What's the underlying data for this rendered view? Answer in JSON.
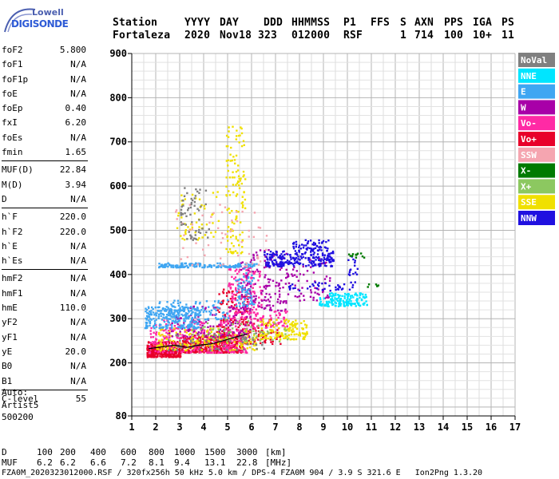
{
  "logo": {
    "line1": "Lowell",
    "line2": "DIGISONDE"
  },
  "header": {
    "labels": [
      "Station",
      "YYYY",
      "DAY",
      "DDD",
      "HHMMSS",
      "P1",
      "FFS",
      "S",
      "AXN",
      "PPS",
      "IGA",
      "PS"
    ],
    "values": [
      "Fortaleza",
      "2020",
      "Nov18",
      "323",
      "012000",
      "RSF",
      "1",
      "714",
      "100",
      "10+",
      "11"
    ]
  },
  "params": [
    {
      "group": [
        {
          "name": "foF2",
          "value": "5.800"
        },
        {
          "name": "foF1",
          "value": "N/A"
        },
        {
          "name": "foF1p",
          "value": "N/A"
        },
        {
          "name": "foE",
          "value": "N/A"
        },
        {
          "name": "foEp",
          "value": "0.40"
        },
        {
          "name": "fxI",
          "value": "6.20"
        },
        {
          "name": "foEs",
          "value": "N/A"
        },
        {
          "name": "fmin",
          "value": "1.65"
        }
      ]
    },
    {
      "group": [
        {
          "name": "MUF(D)",
          "value": "22.84"
        },
        {
          "name": "M(D)",
          "value": "3.94"
        },
        {
          "name": "D",
          "value": "N/A"
        }
      ]
    },
    {
      "group": [
        {
          "name": "h`F",
          "value": "220.0"
        },
        {
          "name": "h`F2",
          "value": "220.0"
        },
        {
          "name": "h`E",
          "value": "N/A"
        },
        {
          "name": "h`Es",
          "value": "N/A"
        }
      ]
    },
    {
      "group": [
        {
          "name": "hmF2",
          "value": "N/A"
        },
        {
          "name": "hmF1",
          "value": "N/A"
        },
        {
          "name": "hmE",
          "value": "110.0"
        },
        {
          "name": "yF2",
          "value": "N/A"
        },
        {
          "name": "yF1",
          "value": "N/A"
        },
        {
          "name": "yE",
          "value": "20.0"
        },
        {
          "name": "B0",
          "value": "N/A"
        },
        {
          "name": "B1",
          "value": "N/A"
        }
      ]
    },
    {
      "group": [
        {
          "name": "C-level",
          "value": "55"
        }
      ]
    }
  ],
  "auto": [
    "Auto:",
    "Artist5",
    "500200"
  ],
  "legend": [
    {
      "label": "NoVal",
      "color": "#808080"
    },
    {
      "label": "NNE",
      "color": "#00e5ff"
    },
    {
      "label": "E",
      "color": "#3fa6f2"
    },
    {
      "label": "W",
      "color": "#a800a8"
    },
    {
      "label": "Vo-",
      "color": "#ff2aa5"
    },
    {
      "label": "Vo+",
      "color": "#e8002a"
    },
    {
      "label": "SSW",
      "color": "#f5a5b0"
    },
    {
      "label": "X-",
      "color": "#007a00"
    },
    {
      "label": "X+",
      "color": "#8cc860"
    },
    {
      "label": "SSE",
      "color": "#f0e000"
    },
    {
      "label": "NNW",
      "color": "#2010e0"
    }
  ],
  "footer": {
    "d_label": "D",
    "d_values": [
      "100",
      "200",
      "400",
      "600",
      "800",
      "1000",
      "1500",
      "3000"
    ],
    "d_unit": "[km]",
    "muf_label": "MUF",
    "muf_values": [
      "6.2",
      "6.2",
      "6.6",
      "7.2",
      "8.1",
      "9.4",
      "13.1",
      "22.8"
    ],
    "muf_unit": "[MHz]",
    "bottom_line": "FZA0M_2020323012000.RSF / 320fx256h 50 kHz 5.0 km / DPS-4 FZA0M 904 / 3.9 S 321.6 E   Ion2Png 1.3.20"
  },
  "chart_data": {
    "type": "scatter",
    "title": "",
    "xlabel": "",
    "ylabel": "",
    "x_unit": "MHz",
    "y_unit": "km",
    "xlim": [
      1,
      17
    ],
    "ylim": [
      80,
      900
    ],
    "xticks": [
      1,
      2,
      3,
      4,
      5,
      6,
      7,
      8,
      9,
      10,
      11,
      12,
      13,
      14,
      15,
      16,
      17
    ],
    "yticks": [
      80,
      200,
      300,
      400,
      500,
      600,
      700,
      800,
      900
    ],
    "grid": true,
    "legend_position": "right",
    "series": [
      {
        "name": "Vo+",
        "color": "#e8002a",
        "clusters": [
          {
            "x": [
              1.6,
              3.0
            ],
            "y": [
              215,
              250
            ],
            "n": 300
          },
          {
            "x": [
              3.0,
              5.6
            ],
            "y": [
              225,
              265
            ],
            "n": 400
          },
          {
            "x": [
              4.5,
              5.9
            ],
            "y": [
              260,
              370
            ],
            "n": 140
          },
          {
            "x": [
              5.6,
              7.2
            ],
            "y": [
              245,
              300
            ],
            "n": 80
          }
        ]
      },
      {
        "name": "Vo-",
        "color": "#ff2aa5",
        "clusters": [
          {
            "x": [
              1.7,
              5.8
            ],
            "y": [
              225,
              300
            ],
            "n": 320
          },
          {
            "x": [
              5.0,
              6.4
            ],
            "y": [
              300,
              420
            ],
            "n": 160
          },
          {
            "x": [
              6.0,
              7.5
            ],
            "y": [
              280,
              320
            ],
            "n": 60
          }
        ]
      },
      {
        "name": "SSE",
        "color": "#f0e000",
        "clusters": [
          {
            "x": [
              2.0,
              6.2
            ],
            "y": [
              230,
              280
            ],
            "n": 160
          },
          {
            "x": [
              6.3,
              8.3
            ],
            "y": [
              255,
              300
            ],
            "n": 130
          },
          {
            "x": [
              4.9,
              5.7
            ],
            "y": [
              450,
              740
            ],
            "n": 120
          },
          {
            "x": [
              2.8,
              4.6
            ],
            "y": [
              480,
              590
            ],
            "n": 50
          }
        ]
      },
      {
        "name": "W",
        "color": "#a800a8",
        "clusters": [
          {
            "x": [
              2.5,
              6.0
            ],
            "y": [
              260,
              330
            ],
            "n": 120
          },
          {
            "x": [
              5.5,
              7.5
            ],
            "y": [
              320,
              460
            ],
            "n": 150
          },
          {
            "x": [
              7.5,
              9.3
            ],
            "y": [
              340,
              440
            ],
            "n": 60
          }
        ]
      },
      {
        "name": "E",
        "color": "#3fa6f2",
        "clusters": [
          {
            "x": [
              1.5,
              3.8
            ],
            "y": [
              280,
              330
            ],
            "n": 220
          },
          {
            "x": [
              2.0,
              5.0
            ],
            "y": [
              300,
              345
            ],
            "n": 110
          },
          {
            "x": [
              2.1,
              6.2
            ],
            "y": [
              418,
              428
            ],
            "n": 150
          },
          {
            "x": [
              5.3,
              6.1
            ],
            "y": [
              330,
              420
            ],
            "n": 60
          }
        ]
      },
      {
        "name": "NNE",
        "color": "#00e5ff",
        "clusters": [
          {
            "x": [
              8.8,
              10.8
            ],
            "y": [
              330,
              360
            ],
            "n": 140
          }
        ]
      },
      {
        "name": "NNW",
        "color": "#2010e0",
        "clusters": [
          {
            "x": [
              6.5,
              9.4
            ],
            "y": [
              420,
              455
            ],
            "n": 220
          },
          {
            "x": [
              7.6,
              9.2
            ],
            "y": [
              455,
              480
            ],
            "n": 60
          },
          {
            "x": [
              7.5,
              10.4
            ],
            "y": [
              365,
              385
            ],
            "n": 40
          },
          {
            "x": [
              10.0,
              10.4
            ],
            "y": [
              400,
              445
            ],
            "n": 15
          }
        ]
      },
      {
        "name": "X-",
        "color": "#007a00",
        "clusters": [
          {
            "x": [
              10.0,
              10.7
            ],
            "y": [
              440,
              450
            ],
            "n": 12
          },
          {
            "x": [
              10.8,
              11.3
            ],
            "y": [
              372,
              380
            ],
            "n": 6
          }
        ]
      },
      {
        "name": "SSW",
        "color": "#f5a5b0",
        "clusters": [
          {
            "x": [
              2.8,
              6.6
            ],
            "y": [
              420,
              560
            ],
            "n": 60
          }
        ]
      },
      {
        "name": "X+",
        "color": "#8cc860",
        "clusters": [
          {
            "x": [
              3.5,
              7.5
            ],
            "y": [
              250,
              300
            ],
            "n": 60
          }
        ]
      },
      {
        "name": "NoVal",
        "color": "#808080",
        "clusters": [
          {
            "x": [
              2.5,
              6.5
            ],
            "y": [
              230,
              270
            ],
            "n": 60
          },
          {
            "x": [
              3.0,
              4.2
            ],
            "y": [
              480,
              600
            ],
            "n": 60
          }
        ]
      }
    ],
    "trace": {
      "color": "#000000",
      "x": [
        1.7,
        2.2,
        2.8,
        3.3,
        3.8,
        4.3,
        4.8,
        5.3,
        5.8
      ],
      "y": [
        232,
        236,
        240,
        235,
        240,
        243,
        250,
        258,
        265
      ]
    }
  }
}
